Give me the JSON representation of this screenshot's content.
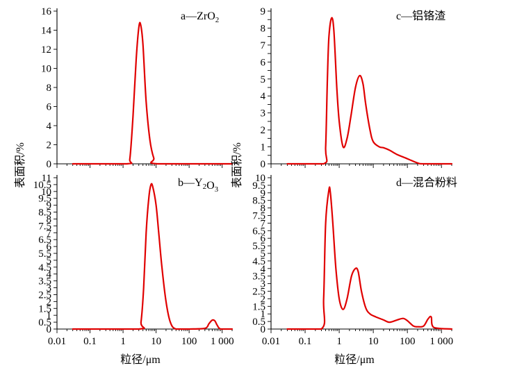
{
  "chart_data": [
    {
      "type": "line",
      "panel": "a",
      "title": "a—ZrO2",
      "xlabel": "粒径/μm",
      "ylabel": "表面积/%",
      "xscale": "log",
      "xlim": [
        0.01,
        2000
      ],
      "ylim": [
        0,
        16
      ],
      "ymax_label": 16,
      "yticks": [
        0,
        2,
        4,
        6,
        8,
        10,
        12,
        14,
        16
      ],
      "xticks": [
        0.01,
        0.1,
        1,
        10,
        100,
        1000
      ],
      "xtick_labels": [],
      "x": [
        0.03,
        1.3,
        1.6,
        2,
        2.5,
        3,
        3.4,
        4,
        5,
        6.5,
        8.5,
        11,
        2000
      ],
      "y": [
        0,
        0,
        0.5,
        5,
        11,
        14.3,
        14.6,
        12.5,
        6.5,
        2.5,
        0.6,
        0,
        0
      ]
    },
    {
      "type": "line",
      "panel": "b",
      "title": "b—Y2O3",
      "xlabel": "粒径/μm",
      "ylabel": "表面积/%",
      "xscale": "log",
      "xlim": [
        0.01,
        2000
      ],
      "ylim": [
        0,
        11
      ],
      "ymax_label": 11,
      "yticks": [
        0,
        0.5,
        1,
        1.5,
        2,
        2.5,
        3,
        3.5,
        4,
        4.5,
        5,
        5.5,
        6,
        6.5,
        7,
        7.5,
        8,
        8.5,
        9,
        9.5,
        10,
        10.5,
        11
      ],
      "yticks_labels": [
        "0",
        "0.5",
        "1",
        "1.5",
        "2",
        "2.5",
        "3",
        "3.5",
        "4",
        "4.5",
        "5",
        "5.5",
        "6",
        "6.5",
        "7",
        "7.5",
        "8",
        "8.5",
        "9",
        "9.5",
        "10",
        "10.5",
        "11"
      ],
      "xticks": [
        0.01,
        0.1,
        1,
        10,
        100,
        1000
      ],
      "xtick_labels": [
        "0.01",
        "0.1",
        "1",
        "10",
        "100",
        "1 000"
      ],
      "x": [
        0.03,
        3,
        3.5,
        4.2,
        5,
        6,
        7,
        8,
        10,
        12,
        15,
        20,
        27,
        40,
        100,
        300,
        400,
        500,
        600,
        700,
        900,
        2000
      ],
      "y": [
        0,
        0,
        0.5,
        3,
        7,
        9.5,
        10.5,
        10.3,
        9,
        7,
        4.5,
        2,
        0.5,
        0,
        0,
        0.05,
        0.4,
        0.65,
        0.6,
        0.3,
        0,
        0
      ]
    },
    {
      "type": "line",
      "panel": "c",
      "title": "c—铝铬渣",
      "xlabel": "粒径/μm",
      "ylabel": "表面积/%",
      "xscale": "log",
      "xlim": [
        0.01,
        2000
      ],
      "ylim": [
        0,
        9
      ],
      "ymax_label": 9,
      "yticks": [
        0,
        0.5,
        1,
        1.5,
        2,
        2.5,
        3,
        3.5,
        4,
        4.5,
        5,
        5.5,
        6,
        6.5,
        7,
        7.5,
        8,
        8.5,
        9
      ],
      "yticks_labels": [
        "0",
        "",
        "1",
        "",
        "2",
        "",
        "3",
        "",
        "4",
        "",
        "5",
        "",
        "6",
        "",
        "7",
        "",
        "8",
        "",
        "9"
      ],
      "xticks": [
        0.01,
        0.1,
        1,
        10,
        100,
        1000
      ],
      "xtick_labels": [],
      "x": [
        0.03,
        0.35,
        0.4,
        0.45,
        0.5,
        0.6,
        0.7,
        0.85,
        1,
        1.3,
        1.7,
        2.2,
        3,
        4,
        5,
        6,
        8,
        10,
        15,
        20,
        30,
        50,
        100,
        200,
        300,
        2000
      ],
      "y": [
        0,
        0,
        1,
        5,
        7.5,
        8.6,
        7.8,
        4.5,
        2.5,
        1.0,
        1.5,
        2.8,
        4.5,
        5.2,
        4.7,
        3.5,
        2,
        1.3,
        1.0,
        0.95,
        0.8,
        0.55,
        0.3,
        0.05,
        0,
        0
      ]
    },
    {
      "type": "line",
      "panel": "d",
      "title": "d—混合粉料",
      "xlabel": "粒径/μm",
      "ylabel": "表面积/%",
      "xscale": "log",
      "xlim": [
        0.01,
        2000
      ],
      "ylim": [
        0,
        10
      ],
      "ymax_label": 10,
      "yticks": [
        0,
        0.5,
        1,
        1.5,
        2,
        2.5,
        3,
        3.5,
        4,
        4.5,
        5,
        5.5,
        6,
        6.5,
        7,
        7.5,
        8,
        8.5,
        9,
        9.5,
        10
      ],
      "yticks_labels": [
        "0",
        "0.5",
        "1",
        "1.5",
        "2",
        "2.5",
        "3",
        "3.5",
        "4",
        "4.5",
        "5",
        "5.5",
        "6",
        "6.5",
        "7",
        "7.5",
        "8",
        "8.5",
        "9",
        "9.5",
        "10"
      ],
      "xticks": [
        0.01,
        0.1,
        1,
        10,
        100,
        1000
      ],
      "xtick_labels": [
        "0.01",
        "0.1",
        "1",
        "10",
        "100",
        "1 000"
      ],
      "x": [
        0.03,
        0.3,
        0.35,
        0.4,
        0.5,
        0.55,
        0.65,
        0.8,
        1,
        1.3,
        1.7,
        2.3,
        3,
        3.6,
        4.5,
        6,
        8,
        12,
        20,
        30,
        50,
        75,
        100,
        150,
        200,
        300,
        400,
        500,
        600,
        2000
      ],
      "y": [
        0,
        0,
        2,
        7,
        9.2,
        9.0,
        7,
        4,
        2,
        1.3,
        2,
        3.5,
        4.0,
        3.8,
        2.5,
        1.4,
        1.0,
        0.8,
        0.6,
        0.45,
        0.6,
        0.7,
        0.55,
        0.2,
        0.15,
        0.2,
        0.65,
        0.8,
        0.1,
        0
      ]
    }
  ]
}
